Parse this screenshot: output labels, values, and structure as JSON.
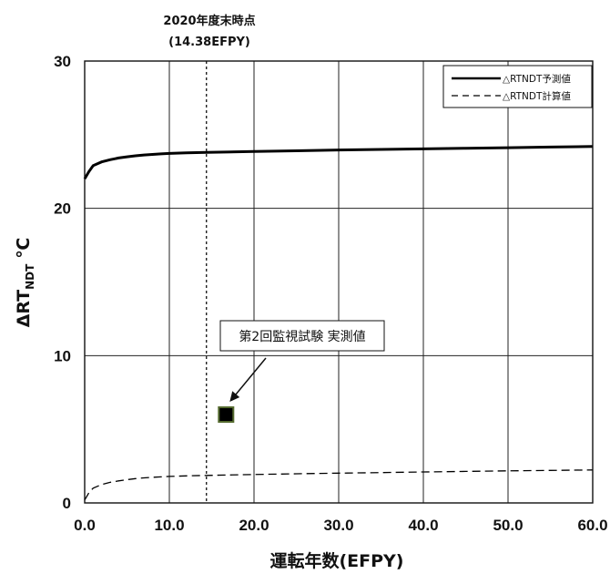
{
  "chart_data": {
    "type": "line",
    "title": "",
    "xlabel": "運転年数(EFPY)",
    "ylabel": "ΔRT",
    "ylabel_sub": "NDT",
    "ylabel_unit": "℃",
    "xlim": [
      0,
      60
    ],
    "ylim": [
      0,
      30
    ],
    "x_ticks": [
      "0.0",
      "10.0",
      "20.0",
      "30.0",
      "40.0",
      "50.0",
      "60.0"
    ],
    "y_ticks": [
      "0",
      "10",
      "20",
      "30"
    ],
    "grid": true,
    "legend_position": "top-right",
    "series": [
      {
        "name": "△RTNDT予測値",
        "style": "solid",
        "color": "#000000",
        "x": [
          0,
          0.5,
          1,
          2,
          3,
          4,
          5,
          6,
          7,
          8,
          9,
          10,
          12,
          14.38,
          20,
          25,
          30,
          35,
          40,
          45,
          50,
          55,
          60
        ],
        "y": [
          22.0,
          22.5,
          22.9,
          23.15,
          23.3,
          23.42,
          23.5,
          23.57,
          23.62,
          23.66,
          23.7,
          23.73,
          23.77,
          23.8,
          23.86,
          23.91,
          23.96,
          24.0,
          24.04,
          24.08,
          24.12,
          24.16,
          24.2
        ]
      },
      {
        "name": "△RTNDT計算値",
        "style": "dashed",
        "color": "#000000",
        "x": [
          0,
          0.5,
          1,
          2,
          3,
          4,
          5,
          6,
          7,
          8,
          9,
          10,
          12,
          14.38,
          20,
          25,
          30,
          35,
          40,
          45,
          50,
          55,
          60
        ],
        "y": [
          0.2,
          0.7,
          1.0,
          1.25,
          1.4,
          1.5,
          1.58,
          1.65,
          1.7,
          1.74,
          1.77,
          1.8,
          1.84,
          1.87,
          1.93,
          1.98,
          2.02,
          2.06,
          2.1,
          2.14,
          2.18,
          2.21,
          2.24
        ]
      }
    ],
    "measured_point": {
      "label": "第2回監視試験 実測値",
      "x": 16.7,
      "y": 6.0,
      "marker": "square",
      "fill": "#000000",
      "edge": "#556b2f"
    },
    "reference_line": {
      "x": 14.38,
      "label_line1": "2020年度末時点",
      "label_line2": "(14.38EFPY)",
      "style": "dotted"
    }
  }
}
